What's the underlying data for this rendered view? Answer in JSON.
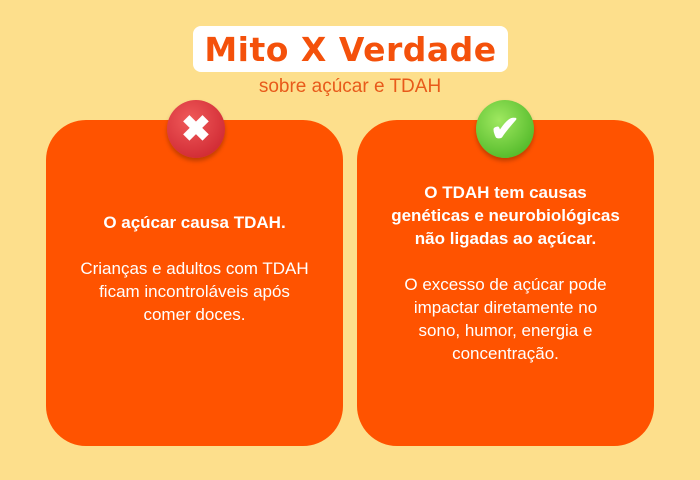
{
  "header": {
    "title": "Mito X Verdade",
    "subtitle": "sobre açúcar e TDAH"
  },
  "myth": {
    "icon": "x-icon",
    "color": "#d62a34",
    "heading": "O açúcar causa TDAH.",
    "body": "Crianças e adultos com TDAH ficam incontroláveis após comer doces."
  },
  "truth": {
    "icon": "check-icon",
    "color": "#5cc62a",
    "heading": "O TDAH tem causas genéticas e neurobiológicas não ligadas ao açúcar.",
    "body": "O excesso de açúcar pode impactar diretamente no sono, humor, energia e concentração."
  },
  "colors": {
    "background": "#fddf8c",
    "card": "#ff5300",
    "title": "#f4510b"
  }
}
